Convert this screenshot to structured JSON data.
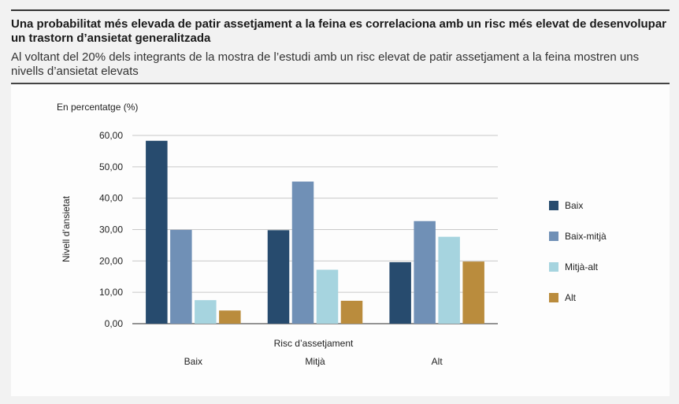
{
  "header": {
    "title": "Una probabilitat més elevada de patir assetjament a la feina es correlaciona amb un risc més elevat de desenvolupar un trastorn d’ansietat generalitzada",
    "subtitle": "Al voltant del 20% dels integrants de la mostra de l’estudi amb un risc elevat de patir assetjament a la feina mostren uns nivells d’ansietat elevats"
  },
  "chart_data": {
    "type": "bar",
    "title": "",
    "unit_label": "En percentatge (%)",
    "xlabel": "Risc d’assetjament",
    "ylabel": "Nivell d’ansietat",
    "categories": [
      "Baix",
      "Mitjà",
      "Alt"
    ],
    "ylim": [
      0,
      60
    ],
    "yticks": [
      "0,00",
      "10,00",
      "20,00",
      "30,00",
      "40,00",
      "50,00",
      "60,00"
    ],
    "grid": true,
    "legend_position": "right",
    "series": [
      {
        "name": "Baix",
        "color": "#274b6e",
        "values": [
          58.3,
          29.8,
          19.6
        ]
      },
      {
        "name": "Baix-mitjà",
        "color": "#7090b6",
        "values": [
          29.9,
          45.3,
          32.7
        ]
      },
      {
        "name": "Mitjà-alt",
        "color": "#a6d4df",
        "values": [
          7.5,
          17.2,
          27.7
        ]
      },
      {
        "name": "Alt",
        "color": "#ba8c3d",
        "values": [
          4.2,
          7.3,
          19.8
        ]
      }
    ]
  }
}
